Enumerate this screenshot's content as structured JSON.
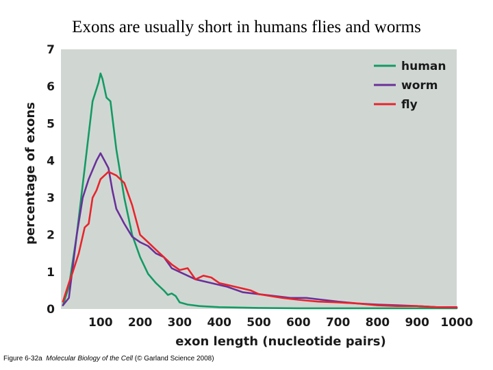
{
  "slide": {
    "title": "Exons are usually short in humans flies and worms",
    "caption_prefix": "Figure 6-32a",
    "caption_book": "Molecular Biology of the Cell",
    "caption_credit": "(© Garland Science 2008)"
  },
  "chart_data": {
    "type": "line",
    "title": "",
    "xlabel": "exon length (nucleotide pairs)",
    "ylabel": "percentage of exons",
    "xlim": [
      0,
      1000
    ],
    "ylim": [
      0,
      7
    ],
    "xticks": [
      100,
      200,
      300,
      400,
      500,
      600,
      700,
      800,
      900,
      1000
    ],
    "yticks": [
      0,
      1,
      2,
      3,
      4,
      5,
      6,
      7
    ],
    "grid": false,
    "background": "#d0d7d3",
    "legend": "top-right",
    "series": [
      {
        "name": "human",
        "color": "#139a63",
        "x": [
          5,
          20,
          40,
          60,
          80,
          95,
          100,
          105,
          115,
          125,
          140,
          160,
          180,
          200,
          220,
          240,
          260,
          270,
          280,
          290,
          300,
          320,
          350,
          400,
          500,
          600,
          700,
          800,
          900,
          1000
        ],
        "y": [
          0.1,
          0.6,
          2.0,
          3.8,
          5.6,
          6.1,
          6.35,
          6.2,
          5.7,
          5.6,
          4.3,
          3.0,
          2.0,
          1.4,
          0.95,
          0.7,
          0.5,
          0.38,
          0.42,
          0.35,
          0.18,
          0.12,
          0.08,
          0.05,
          0.03,
          0.02,
          0.02,
          0.02,
          0.02,
          0.02
        ]
      },
      {
        "name": "worm",
        "color": "#6a3099",
        "x": [
          5,
          20,
          40,
          55,
          70,
          90,
          100,
          110,
          120,
          130,
          140,
          160,
          180,
          200,
          220,
          240,
          260,
          280,
          300,
          320,
          340,
          380,
          420,
          460,
          500,
          540,
          580,
          620,
          660,
          700,
          750,
          800,
          850,
          900,
          950,
          1000
        ],
        "y": [
          0.1,
          0.3,
          2.0,
          3.0,
          3.5,
          4.0,
          4.2,
          4.0,
          3.8,
          3.2,
          2.7,
          2.3,
          1.95,
          1.8,
          1.7,
          1.5,
          1.4,
          1.1,
          1.0,
          0.9,
          0.8,
          0.7,
          0.6,
          0.45,
          0.4,
          0.35,
          0.3,
          0.3,
          0.25,
          0.2,
          0.15,
          0.12,
          0.1,
          0.08,
          0.05,
          0.05
        ]
      },
      {
        "name": "fly",
        "color": "#e8242b",
        "x": [
          5,
          20,
          30,
          45,
          60,
          70,
          80,
          90,
          100,
          110,
          120,
          140,
          160,
          180,
          200,
          220,
          240,
          260,
          280,
          300,
          320,
          340,
          360,
          380,
          400,
          420,
          440,
          460,
          480,
          500,
          530,
          560,
          600,
          650,
          700,
          750,
          800,
          850,
          900,
          950,
          1000
        ],
        "y": [
          0.2,
          0.7,
          1.0,
          1.5,
          2.2,
          2.3,
          3.0,
          3.2,
          3.5,
          3.6,
          3.7,
          3.6,
          3.4,
          2.8,
          2.0,
          1.8,
          1.6,
          1.4,
          1.2,
          1.05,
          1.1,
          0.8,
          0.9,
          0.85,
          0.7,
          0.65,
          0.6,
          0.55,
          0.5,
          0.4,
          0.35,
          0.3,
          0.25,
          0.2,
          0.18,
          0.15,
          0.1,
          0.08,
          0.08,
          0.05,
          0.04
        ]
      }
    ]
  }
}
